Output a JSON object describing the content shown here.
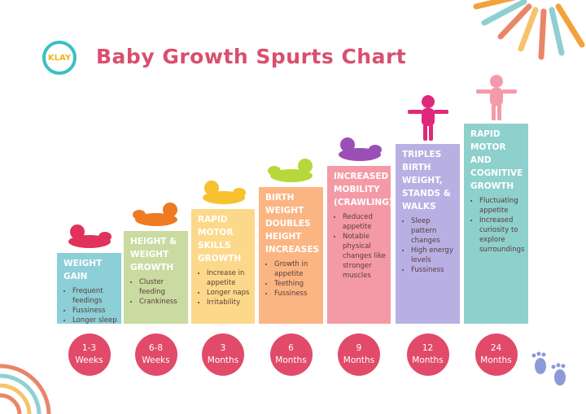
{
  "title": "Baby Growth Spurts Chart",
  "logo_text": "KLAY",
  "stages": [
    {
      "heading": "WEIGHT GAIN",
      "items": [
        "Frequent feedings",
        "Fussiness",
        "Longer sleep"
      ],
      "age_num": "1-3",
      "age_unit": "Weeks",
      "color": "#8ccfd6",
      "baby_color": "#e0325a"
    },
    {
      "heading": "HEIGHT & WEIGHT GROWTH",
      "items": [
        "Cluster feeding",
        "Crankiness"
      ],
      "age_num": "6-8",
      "age_unit": "Weeks",
      "color": "#c9dba0",
      "baby_color": "#f07a22"
    },
    {
      "heading": "RAPID MOTOR SKILLS GROWTH",
      "items": [
        "Increase in appetite",
        "Longer naps",
        "Irritability"
      ],
      "age_num": "3",
      "age_unit": "Months",
      "color": "#fcd98a",
      "baby_color": "#f6c22e"
    },
    {
      "heading": "BIRTH WEIGHT DOUBLES HEIGHT INCREASES",
      "items": [
        "Growth in appetite",
        "Teething",
        "Fussiness"
      ],
      "age_num": "6",
      "age_unit": "Months",
      "color": "#fbb583",
      "baby_color": "#b6d83a"
    },
    {
      "heading": "INCREASED MOBILITY (CRAWLING)",
      "items": [
        "Reduced appetite",
        "Notable physical changes like stronger muscles"
      ],
      "age_num": "9",
      "age_unit": "Months",
      "color": "#f39aa6",
      "baby_color": "#9a4fb6"
    },
    {
      "heading": "TRIPLES BIRTH WEIGHT, STANDS & WALKS",
      "items": [
        "Sleep pattern changes",
        "High energy levels",
        "Fussiness"
      ],
      "age_num": "12",
      "age_unit": "Months",
      "color": "#b8b0e3",
      "baby_color": "#e0287a"
    },
    {
      "heading": "RAPID MOTOR AND COGNITIVE GROWTH",
      "items": [
        "Fluctuating appetite",
        "Increased curiosity to explore surroundings"
      ],
      "age_num": "24",
      "age_unit": "Months",
      "color": "#8dd0cc",
      "baby_color": "#f49aa8"
    }
  ],
  "colors": {
    "title": "#d94f6e",
    "age_circle": "#e24a6a"
  }
}
